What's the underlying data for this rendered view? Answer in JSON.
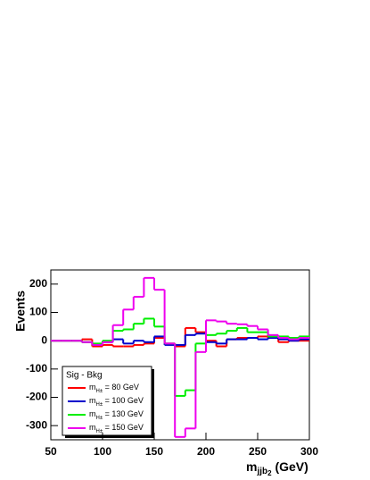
{
  "chart_data": {
    "type": "histogram",
    "y_label": "Events",
    "x_label": "mjjb2 (GeV)",
    "legend_title": "Sig - Bkg",
    "bins": [
      50,
      60,
      70,
      80,
      90,
      100,
      110,
      120,
      130,
      140,
      150,
      160,
      170,
      180,
      190,
      200,
      210,
      220,
      230,
      240,
      250,
      260,
      270,
      280,
      290,
      300
    ],
    "series": [
      {
        "name": "mH± = 80 GeV",
        "color": "#ff0000",
        "values": [
          0,
          0,
          0,
          5,
          -20,
          -15,
          -20,
          -20,
          -15,
          -10,
          10,
          -10,
          -20,
          45,
          30,
          0,
          -20,
          5,
          10,
          10,
          15,
          10,
          -5,
          0,
          0
        ]
      },
      {
        "name": "mH± = 100 GeV",
        "color": "#0000cc",
        "values": [
          0,
          0,
          0,
          -5,
          -15,
          -5,
          5,
          -10,
          0,
          -5,
          15,
          -15,
          -15,
          20,
          25,
          -5,
          -10,
          5,
          5,
          10,
          5,
          10,
          5,
          0,
          5
        ]
      },
      {
        "name": "mH± = 130 GeV",
        "color": "#00ee00",
        "values": [
          0,
          0,
          0,
          -5,
          -10,
          0,
          35,
          40,
          60,
          78,
          50,
          -10,
          -195,
          -175,
          -10,
          20,
          25,
          35,
          45,
          30,
          30,
          15,
          15,
          10,
          15
        ]
      },
      {
        "name": "mH± = 150 GeV",
        "color": "#ee00ee",
        "values": [
          0,
          0,
          0,
          -5,
          -15,
          -5,
          55,
          110,
          155,
          222,
          180,
          -10,
          -340,
          -310,
          -40,
          72,
          68,
          60,
          58,
          52,
          40,
          20,
          10,
          5,
          10
        ]
      }
    ],
    "xlim": [
      50,
      300
    ],
    "xticks": [
      50,
      100,
      150,
      200,
      250,
      300
    ],
    "ylim": [
      -350,
      250
    ],
    "yticks": [
      -300,
      -200,
      -100,
      0,
      100,
      200
    ]
  }
}
